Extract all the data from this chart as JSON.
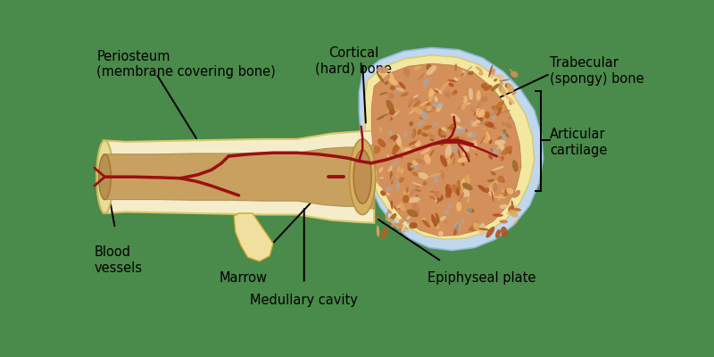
{
  "bg_color": "#4a8a4a",
  "labels": {
    "periosteum": "Periosteum\n(membrane covering bone)",
    "blood_vessels": "Blood\nvessels",
    "marrow": "Marrow",
    "medullary_cavity": "Medullary cavity",
    "cortical_bone": "Cortical\n(hard) bone",
    "trabecular_bone": "Trabecular\n(spongy) bone",
    "articular_cartilage": "Articular\ncartilage",
    "epiphyseal_plate": "Epiphyseal plate"
  },
  "colors": {
    "bone_cream": "#f5ecca",
    "bone_yellow": "#f0e090",
    "epiphysis_blue": "#c0d8ee",
    "epiphysis_yellow": "#f2e8a0",
    "trabecular_base": "#d4905a",
    "marrow_tan": "#c8a060",
    "marrow_dark": "#b88040",
    "blood_red": "#991010",
    "periosteum_flap": "#f0e0a0",
    "shaft_end_dark": "#d4b060"
  }
}
